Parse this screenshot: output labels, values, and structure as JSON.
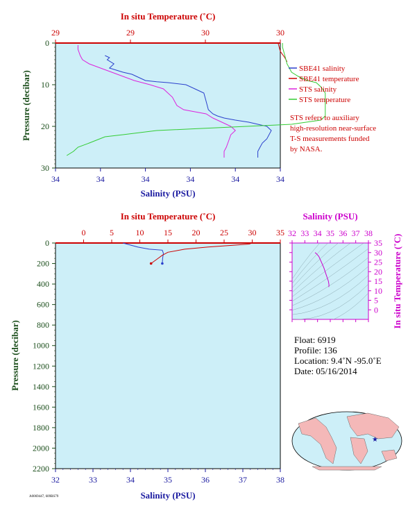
{
  "chart_data": [
    {
      "id": "top",
      "type": "line",
      "xlabel_bottom": "Salinity (PSU)",
      "xlabel_top": "In situ Temperature (˚C)",
      "ylabel": "Pressure (decibar)",
      "salinity_ticks": [
        "34",
        "34",
        "34",
        "34",
        "34",
        "34"
      ],
      "temperature_ticks": [
        "29",
        "29",
        "30",
        "30"
      ],
      "pressure_ticks": [
        "0",
        "10",
        "20",
        "30"
      ],
      "temperature_range": [
        29,
        30
      ],
      "pressure_range": [
        0,
        30
      ],
      "salinity_range": [
        0,
        1
      ],
      "series": [
        {
          "name": "SBE41 salinity",
          "color": "#2a3fcc",
          "axis": "salinity",
          "x": [
            0.22,
            0.24,
            0.23,
            0.26,
            0.24,
            0.3,
            0.34,
            0.36,
            0.38,
            0.4,
            0.45,
            0.5,
            0.58,
            0.62,
            0.66,
            0.67,
            0.68,
            0.7,
            0.72,
            0.75,
            0.8,
            0.86,
            0.9,
            0.94,
            0.96,
            0.94,
            0.92,
            0.91,
            0.9,
            0.9
          ],
          "y": [
            3,
            3.5,
            4,
            5,
            6,
            7,
            7.5,
            8,
            8.5,
            9,
            9.3,
            9.5,
            10,
            11,
            12,
            14,
            16,
            17,
            17.5,
            18,
            18.5,
            19,
            19.5,
            20,
            21,
            23,
            24,
            25,
            26,
            27.5
          ]
        },
        {
          "name": "SBE41 temperature",
          "color": "#cc0000",
          "axis": "temperature",
          "x": [
            29.99,
            30.0,
            30.02,
            30.03
          ],
          "y": [
            0,
            2,
            3.5,
            4.5
          ]
        },
        {
          "name": "STS salinity",
          "color": "#dd22dd",
          "axis": "salinity",
          "x": [
            0.1,
            0.1,
            0.11,
            0.12,
            0.15,
            0.2,
            0.25,
            0.3,
            0.35,
            0.42,
            0.48,
            0.5,
            0.52,
            0.53,
            0.54,
            0.57,
            0.62,
            0.67,
            0.7,
            0.74,
            0.76,
            0.78,
            0.79,
            0.8,
            0.78,
            0.77,
            0.76,
            0.75,
            0.75
          ],
          "y": [
            0.5,
            1.5,
            3,
            4,
            5,
            6,
            7,
            8,
            9,
            10,
            11,
            12,
            13,
            14,
            15,
            16,
            16.5,
            17,
            18,
            19,
            19.5,
            20,
            20.5,
            21,
            22,
            23.5,
            25,
            26,
            27.5
          ]
        },
        {
          "name": "STS temperature",
          "color": "#33cc33",
          "axis": "temperature",
          "x": [
            30.01,
            30.01,
            30.02,
            30.03,
            30.05,
            30.08,
            30.12,
            30.16,
            30.18,
            30.2,
            30.2,
            30.18,
            30.05,
            29.85,
            29.65,
            29.45,
            29.3,
            29.22,
            29.15,
            29.1,
            29.08,
            29.05
          ],
          "y": [
            0,
            1,
            3,
            5,
            7,
            8,
            9,
            9.5,
            10.5,
            12,
            17.5,
            18.5,
            19.5,
            20,
            20.5,
            21,
            22,
            22.5,
            24,
            25,
            26,
            27
          ]
        }
      ]
    },
    {
      "id": "bottom",
      "type": "line",
      "xlabel_bottom": "Salinity (PSU)",
      "xlabel_top": "In situ Temperature (˚C)",
      "ylabel": "Pressure (decibar)",
      "salinity_range": [
        32,
        38
      ],
      "salinity_ticks": [
        "32",
        "33",
        "34",
        "35",
        "36",
        "37",
        "38"
      ],
      "temperature_range": [
        -5,
        35
      ],
      "temperature_ticks": [
        "0",
        "5",
        "10",
        "15",
        "20",
        "25",
        "30",
        "35"
      ],
      "pressure_range": [
        0,
        2200
      ],
      "pressure_ticks": [
        "0",
        "200",
        "400",
        "600",
        "800",
        "1000",
        "1200",
        "1400",
        "1600",
        "1800",
        "2000",
        "2200"
      ],
      "series": [
        {
          "name": "salinity",
          "color": "#2a3fcc",
          "axis": "salinity",
          "x": [
            33.8,
            33.9,
            34.2,
            34.5,
            34.85,
            34.88,
            34.86,
            34.85
          ],
          "y": [
            0,
            10,
            40,
            60,
            70,
            100,
            150,
            200
          ]
        },
        {
          "name": "temperature",
          "color": "#cc0000",
          "axis": "temperature",
          "x": [
            29.9,
            29.5,
            27,
            22,
            18,
            15,
            14,
            13,
            12
          ],
          "y": [
            0,
            10,
            20,
            40,
            60,
            90,
            120,
            160,
            200
          ]
        }
      ]
    },
    {
      "id": "ts",
      "type": "line",
      "xlabel_top": "Salinity (PSU)",
      "ylabel_right": "In situ Temperature (˚C)",
      "salinity_range": [
        32,
        38
      ],
      "salinity_ticks": [
        "32",
        "33",
        "34",
        "35",
        "36",
        "37",
        "38"
      ],
      "temperature_range": [
        -5,
        35
      ],
      "temperature_ticks": [
        "35",
        "30",
        "25",
        "20",
        "15",
        "10",
        "5",
        "0"
      ],
      "series": [
        {
          "name": "T-S",
          "color": "#cc00cc",
          "x": [
            33.8,
            33.9,
            34.1,
            34.3,
            34.5,
            34.7,
            34.85,
            34.9,
            34.88
          ],
          "y": [
            30,
            29.5,
            28,
            25,
            22,
            18,
            15,
            13,
            12
          ]
        }
      ]
    }
  ],
  "legend": [
    {
      "label": "SBE41 salinity",
      "color": "#2a3fcc"
    },
    {
      "label": "SBE41 temperature",
      "color": "#cc0000"
    },
    {
      "label": "STS salinity",
      "color": "#dd22dd"
    },
    {
      "label": "STS temperature",
      "color": "#33cc33"
    }
  ],
  "note_lines": [
    "STS refers to auxiliary",
    "high-resolution near-surface",
    "T-S measurements funded",
    "by NASA."
  ],
  "info": {
    "float_line": "Float:  6919",
    "profile_line": "Profile:  136",
    "location_line": "Location:  9.4˚N  -95.0˚E",
    "date_line": "Date:  05/16/2014"
  },
  "footer_code": "A0069447, 609BS79",
  "colors": {
    "plot_bg": "#cdeff8",
    "red": "#cc0000",
    "blue": "#1a1aa0",
    "green": "#1a4d1a",
    "magenta": "#cc00cc"
  }
}
